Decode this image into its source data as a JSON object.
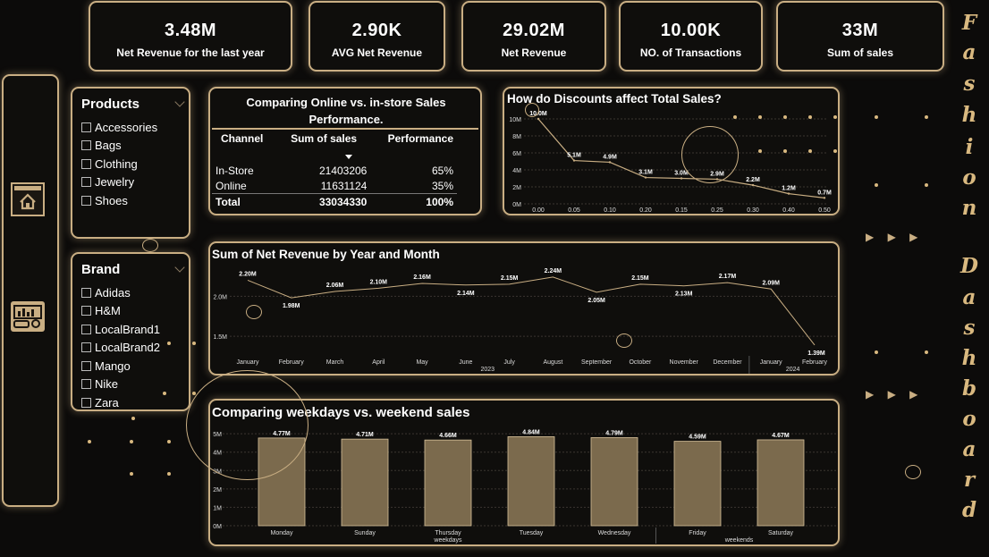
{
  "kpis": [
    {
      "value": "3.48M",
      "label": "Net Revenue for the last year"
    },
    {
      "value": "2.90K",
      "label": "AVG Net Revenue"
    },
    {
      "value": "29.02M",
      "label": "Net Revenue"
    },
    {
      "value": "10.00K",
      "label": "NO. of Transactions"
    },
    {
      "value": "33M",
      "label": "Sum of sales"
    }
  ],
  "side_title": [
    "F",
    "a",
    "s",
    "h",
    "i",
    "o",
    "n",
    "D",
    "a",
    "s",
    "h",
    "b",
    "o",
    "a",
    "r",
    "d"
  ],
  "nav": {
    "home_icon": "home-icon",
    "analytics_icon": "analytics-icon"
  },
  "products": {
    "title": "Products",
    "items": [
      "Accessories",
      "Bags",
      "Clothing",
      "Jewelry",
      "Shoes"
    ]
  },
  "brand": {
    "title": "Brand",
    "items": [
      "Adidas",
      "H&M",
      "LocalBrand1",
      "LocalBrand2",
      "Mango",
      "Nike",
      "Zara"
    ]
  },
  "channel_table": {
    "title": "Comparing Online vs. in-store Sales Performance.",
    "headers": [
      "Channel",
      "Sum of sales",
      "Performance"
    ],
    "rows": [
      {
        "channel": "In-Store",
        "sales": "21403206",
        "perf": "65%"
      },
      {
        "channel": "Online",
        "sales": "11631124",
        "perf": "35%"
      }
    ],
    "total": {
      "channel": "Total",
      "sales": "33034330",
      "perf": "100%"
    }
  },
  "arrows": "▶ ▶ ▶",
  "chart_data": [
    {
      "type": "line",
      "title": "How do Discounts affect Total Sales?",
      "x": [
        "0.00",
        "0.05",
        "0.10",
        "0.20",
        "0.15",
        "0.25",
        "0.30",
        "0.40",
        "0.50"
      ],
      "values": [
        10.0,
        5.1,
        4.9,
        3.1,
        3.0,
        2.9,
        2.2,
        1.2,
        0.7
      ],
      "labels": [
        "10.0M",
        "5.1M",
        "4.9M",
        "3.1M",
        "3.0M",
        "2.9M",
        "2.2M",
        "1.2M",
        "0.7M"
      ],
      "yticks": [
        "0M",
        "2M",
        "4M",
        "6M",
        "8M",
        "10M"
      ],
      "ylim": [
        0,
        10
      ],
      "grid": true
    },
    {
      "type": "line",
      "title": "Sum of Net Revenue by Year and Month",
      "x": [
        "January",
        "February",
        "March",
        "April",
        "May",
        "June",
        "July",
        "August",
        "September",
        "October",
        "November",
        "December",
        "January",
        "February"
      ],
      "years": [
        {
          "label": "2023"
        },
        {
          "label": "2024"
        }
      ],
      "values": [
        2.2,
        1.98,
        2.06,
        2.1,
        2.16,
        2.14,
        2.15,
        2.24,
        2.05,
        2.15,
        2.13,
        2.17,
        2.09,
        1.39
      ],
      "labels": [
        "2.20M",
        "1.98M",
        "2.06M",
        "2.10M",
        "2.16M",
        "2.14M",
        "2.15M",
        "2.24M",
        "2.05M",
        "2.15M",
        "2.13M",
        "2.17M",
        "2.09M",
        "1.39M"
      ],
      "yticks": [
        "1.5M",
        "2.0M"
      ],
      "ylim": [
        1.3,
        2.35
      ],
      "grid": true
    },
    {
      "type": "bar",
      "title": "Comparing weekdays vs. weekend sales",
      "categories": [
        "Monday",
        "Sunday",
        "Thursday",
        "Tuesday",
        "Wednesday",
        "Friday",
        "Saturday"
      ],
      "groups": [
        {
          "label": "weekdays"
        },
        {
          "label": "weekends"
        }
      ],
      "values": [
        4.77,
        4.71,
        4.66,
        4.84,
        4.79,
        4.59,
        4.67
      ],
      "labels": [
        "4.77M",
        "4.71M",
        "4.66M",
        "4.84M",
        "4.79M",
        "4.59M",
        "4.67M"
      ],
      "yticks": [
        "0M",
        "1M",
        "2M",
        "3M",
        "4M",
        "5M"
      ],
      "ylim": [
        0,
        5.3
      ],
      "bar_color": "#7b6a4d",
      "grid": true
    }
  ]
}
